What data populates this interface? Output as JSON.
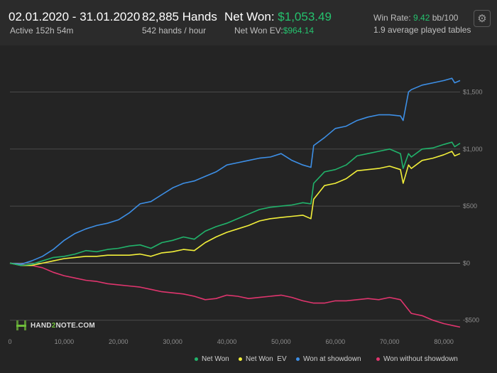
{
  "header": {
    "date_range": "02.01.2020 - 31.01.2020",
    "active": "Active 152h 54m",
    "hands": "82,885 Hands",
    "hands_per_hour": "542 hands / hour",
    "net_won_label": "Net Won:",
    "net_won_value": "$1,053.49",
    "net_won_ev_label": "Net Won  EV:",
    "net_won_ev_value": "$964.14",
    "win_rate_label": "Win Rate:",
    "win_rate_value": "9.42",
    "win_rate_unit": "bb/100",
    "tables": "1.9 average played tables",
    "settings_icon": "gear-icon"
  },
  "logo": {
    "text_a": "HAND",
    "text_b": "2",
    "text_c": "NOTE.COM"
  },
  "colors": {
    "net_won": "#21b36b",
    "net_won_ev": "#f2ef3a",
    "showdown": "#3d8fe6",
    "non_showdown": "#e0356e",
    "accent": "#25c26e"
  },
  "chart_data": {
    "type": "line",
    "xlabel": "",
    "ylabel": "",
    "xlim": [
      0,
      83000
    ],
    "ylim": [
      -620,
      1870
    ],
    "x_ticks": [
      0,
      10000,
      20000,
      30000,
      40000,
      50000,
      60000,
      70000,
      80000
    ],
    "x_tick_labels": [
      "0",
      "10,000",
      "20,000",
      "30,000",
      "40,000",
      "50,000",
      "60,000",
      "70,000",
      "80,000"
    ],
    "y_ticks": [
      -500,
      0,
      500,
      1000,
      1500
    ],
    "y_tick_labels": [
      "-$500",
      "$0",
      "$500",
      "$1,000",
      "$1,500"
    ],
    "grid": true,
    "legend_position": "bottom-right",
    "series": [
      {
        "name": "Net Won",
        "color": "#21b36b",
        "x": [
          0,
          2000,
          4000,
          6000,
          8000,
          10000,
          12000,
          14000,
          16000,
          18000,
          20000,
          22000,
          24000,
          26000,
          28000,
          30000,
          32000,
          34000,
          36000,
          38000,
          40000,
          42000,
          44000,
          46000,
          48000,
          50000,
          52000,
          54000,
          55500,
          56000,
          58000,
          60000,
          62000,
          64000,
          66000,
          68000,
          70000,
          72000,
          72500,
          73500,
          74000,
          76000,
          78000,
          80000,
          81500,
          82000,
          83000
        ],
        "y": [
          0,
          -20,
          -10,
          20,
          50,
          60,
          80,
          110,
          100,
          120,
          130,
          150,
          160,
          130,
          180,
          200,
          230,
          210,
          280,
          320,
          350,
          390,
          430,
          470,
          490,
          500,
          510,
          530,
          520,
          700,
          800,
          820,
          860,
          940,
          960,
          980,
          1000,
          960,
          830,
          960,
          930,
          1000,
          1010,
          1040,
          1060,
          1020,
          1050
        ]
      },
      {
        "name": "Net Won  EV",
        "color": "#f2ef3a",
        "x": [
          0,
          2000,
          4000,
          6000,
          8000,
          10000,
          12000,
          14000,
          16000,
          18000,
          20000,
          22000,
          24000,
          26000,
          28000,
          30000,
          32000,
          34000,
          36000,
          38000,
          40000,
          42000,
          44000,
          46000,
          48000,
          50000,
          52000,
          54000,
          55500,
          56000,
          58000,
          60000,
          62000,
          64000,
          66000,
          68000,
          70000,
          72000,
          72500,
          73500,
          74000,
          76000,
          78000,
          80000,
          81500,
          82000,
          83000
        ],
        "y": [
          0,
          -20,
          -20,
          0,
          20,
          40,
          50,
          60,
          60,
          70,
          70,
          70,
          80,
          60,
          90,
          100,
          120,
          110,
          180,
          230,
          270,
          300,
          330,
          370,
          390,
          400,
          410,
          420,
          390,
          560,
          680,
          700,
          740,
          810,
          820,
          830,
          850,
          820,
          700,
          860,
          830,
          900,
          920,
          950,
          980,
          940,
          960
        ]
      },
      {
        "name": "Won at showdown",
        "color": "#3d8fe6",
        "x": [
          0,
          2000,
          4000,
          6000,
          8000,
          10000,
          12000,
          14000,
          16000,
          18000,
          20000,
          22000,
          24000,
          26000,
          28000,
          30000,
          32000,
          34000,
          36000,
          38000,
          40000,
          42000,
          44000,
          46000,
          48000,
          50000,
          52000,
          54000,
          55500,
          56000,
          58000,
          60000,
          62000,
          64000,
          66000,
          68000,
          70000,
          72000,
          72500,
          73500,
          74000,
          76000,
          78000,
          80000,
          81500,
          82000,
          83000
        ],
        "y": [
          0,
          -10,
          20,
          60,
          120,
          200,
          260,
          300,
          330,
          350,
          380,
          440,
          520,
          540,
          600,
          660,
          700,
          720,
          760,
          800,
          860,
          880,
          900,
          920,
          930,
          960,
          900,
          860,
          840,
          1030,
          1100,
          1180,
          1200,
          1250,
          1280,
          1300,
          1300,
          1290,
          1250,
          1500,
          1520,
          1560,
          1580,
          1600,
          1620,
          1580,
          1600
        ]
      },
      {
        "name": "Won without showdown",
        "color": "#e0356e",
        "x": [
          0,
          2000,
          4000,
          6000,
          8000,
          10000,
          12000,
          14000,
          16000,
          18000,
          20000,
          22000,
          24000,
          26000,
          28000,
          30000,
          32000,
          34000,
          36000,
          38000,
          40000,
          42000,
          44000,
          46000,
          48000,
          50000,
          52000,
          54000,
          56000,
          58000,
          60000,
          62000,
          64000,
          66000,
          68000,
          70000,
          72000,
          74000,
          76000,
          78000,
          80000,
          82000,
          83000
        ],
        "y": [
          0,
          -10,
          -20,
          -40,
          -80,
          -110,
          -130,
          -150,
          -160,
          -180,
          -190,
          -200,
          -210,
          -230,
          -250,
          -260,
          -270,
          -290,
          -320,
          -310,
          -280,
          -290,
          -310,
          -300,
          -290,
          -280,
          -300,
          -330,
          -350,
          -350,
          -330,
          -330,
          -320,
          -310,
          -320,
          -300,
          -320,
          -440,
          -460,
          -500,
          -530,
          -550,
          -560
        ]
      }
    ]
  }
}
